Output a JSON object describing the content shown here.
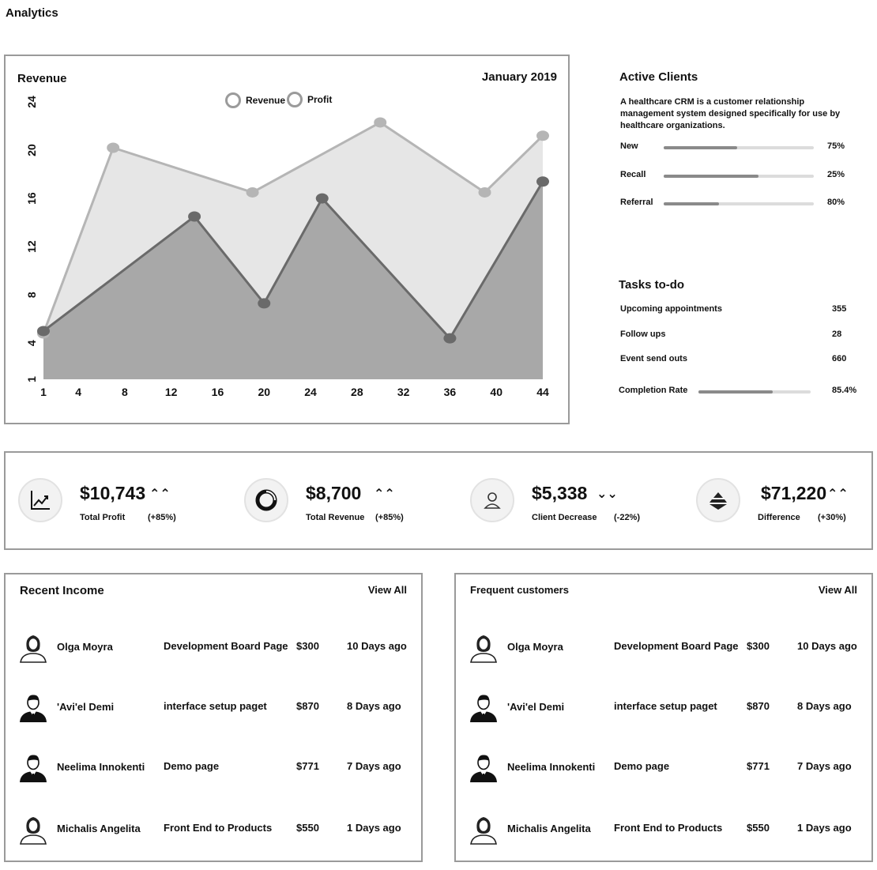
{
  "page": {
    "title": "Analytics"
  },
  "chart": {
    "title": "Revenue",
    "period": "January 2019",
    "legend": [
      {
        "label": "Revenue",
        "color": "#c4c4c4"
      },
      {
        "label": "Profit",
        "color": "#7a7a7a"
      }
    ]
  },
  "chart_data": {
    "type": "area",
    "title": "Revenue",
    "x_ticks": [
      "1",
      "4",
      "8",
      "12",
      "16",
      "20",
      "24",
      "28",
      "32",
      "36",
      "40",
      "44"
    ],
    "y_ticks": [
      "1",
      "4",
      "8",
      "12",
      "16",
      "20",
      "24"
    ],
    "xlim": [
      1,
      44
    ],
    "ylim": [
      1,
      24
    ],
    "series": [
      {
        "name": "Revenue",
        "color": "#e6e6e6",
        "line_color": "#b5b5b5",
        "x": [
          1,
          7,
          19,
          30,
          39,
          44
        ],
        "y": [
          4.8,
          20.2,
          16.5,
          22.3,
          16.5,
          21.2
        ]
      },
      {
        "name": "Profit",
        "color": "#a8a8a8",
        "line_color": "#6a6a6a",
        "x": [
          1,
          14,
          20,
          25,
          36,
          44
        ],
        "y": [
          5,
          14.5,
          7.3,
          16,
          4.4,
          17.4
        ]
      }
    ],
    "grid": false,
    "legend": "top-center"
  },
  "active_clients": {
    "title": "Active Clients",
    "description": "A healthcare CRM is a customer relationship management system designed specifically for use by healthcare organizations.",
    "items": [
      {
        "label": "New",
        "pct_text": "75%",
        "fill": 0.49
      },
      {
        "label": "Recall",
        "pct_text": "25%",
        "fill": 0.63
      },
      {
        "label": "Referral",
        "pct_text": "80%",
        "fill": 0.37
      }
    ]
  },
  "tasks": {
    "title": "Tasks to-do",
    "items": [
      {
        "label": "Upcoming appointments",
        "value": "355"
      },
      {
        "label": "Follow ups",
        "value": "28"
      },
      {
        "label": "Event send outs",
        "value": "660"
      }
    ],
    "completion_label": "Completion Rate",
    "completion_value": "85.4%",
    "completion_fill": 0.66
  },
  "stats": [
    {
      "value": "$10,743",
      "arrow": "⌃⌃",
      "direction": "up",
      "label": "Total Profit",
      "change": "(+85%)",
      "icon": "chart-line-icon"
    },
    {
      "value": "$8,700",
      "arrow": "⌃⌃",
      "direction": "up",
      "label": "Total Revenue",
      "change": "(+85%)",
      "icon": "donut-icon"
    },
    {
      "value": "$5,338",
      "arrow": "⌄⌄",
      "direction": "down",
      "label": "Client Decrease",
      "change": "(-22%)",
      "icon": "user-icon"
    },
    {
      "value": "$71,220",
      "arrow": "⌃⌃",
      "direction": "up",
      "label": "Difference",
      "change": "(+30%)",
      "icon": "layers-icon"
    }
  ],
  "recent_income": {
    "title": "Recent Income",
    "view_all": "View All",
    "rows": [
      {
        "name": "Olga Moyra",
        "item": "Development Board Page",
        "amount": "$300",
        "date": "10 Days ago",
        "avatar": "female-avatar-icon"
      },
      {
        "name": "'Avi'el Demi",
        "item": "interface setup paget",
        "amount": "$870",
        "date": "8 Days ago",
        "avatar": "male-avatar-icon"
      },
      {
        "name": "Neelima Innokenti",
        "item": "Demo page",
        "amount": "$771",
        "date": "7 Days ago",
        "avatar": "male-avatar-icon"
      },
      {
        "name": "Michalis Angelita",
        "item": "Front End to Products",
        "amount": "$550",
        "date": "1 Days ago",
        "avatar": "female-avatar-icon"
      }
    ]
  },
  "frequent_customers": {
    "title": "Frequent customers",
    "view_all": "View All",
    "rows": [
      {
        "name": "Olga Moyra",
        "item": "Development Board Page",
        "amount": "$300",
        "date": "10 Days ago",
        "avatar": "female-avatar-icon"
      },
      {
        "name": "'Avi'el Demi",
        "item": "interface setup paget",
        "amount": "$870",
        "date": "8 Days ago",
        "avatar": "male-avatar-icon"
      },
      {
        "name": "Neelima Innokenti",
        "item": "Demo page",
        "amount": "$771",
        "date": "7 Days ago",
        "avatar": "male-avatar-icon"
      },
      {
        "name": "Michalis Angelita",
        "item": "Front End to Products",
        "amount": "$550",
        "date": "1 Days ago",
        "avatar": "female-avatar-icon"
      }
    ]
  }
}
